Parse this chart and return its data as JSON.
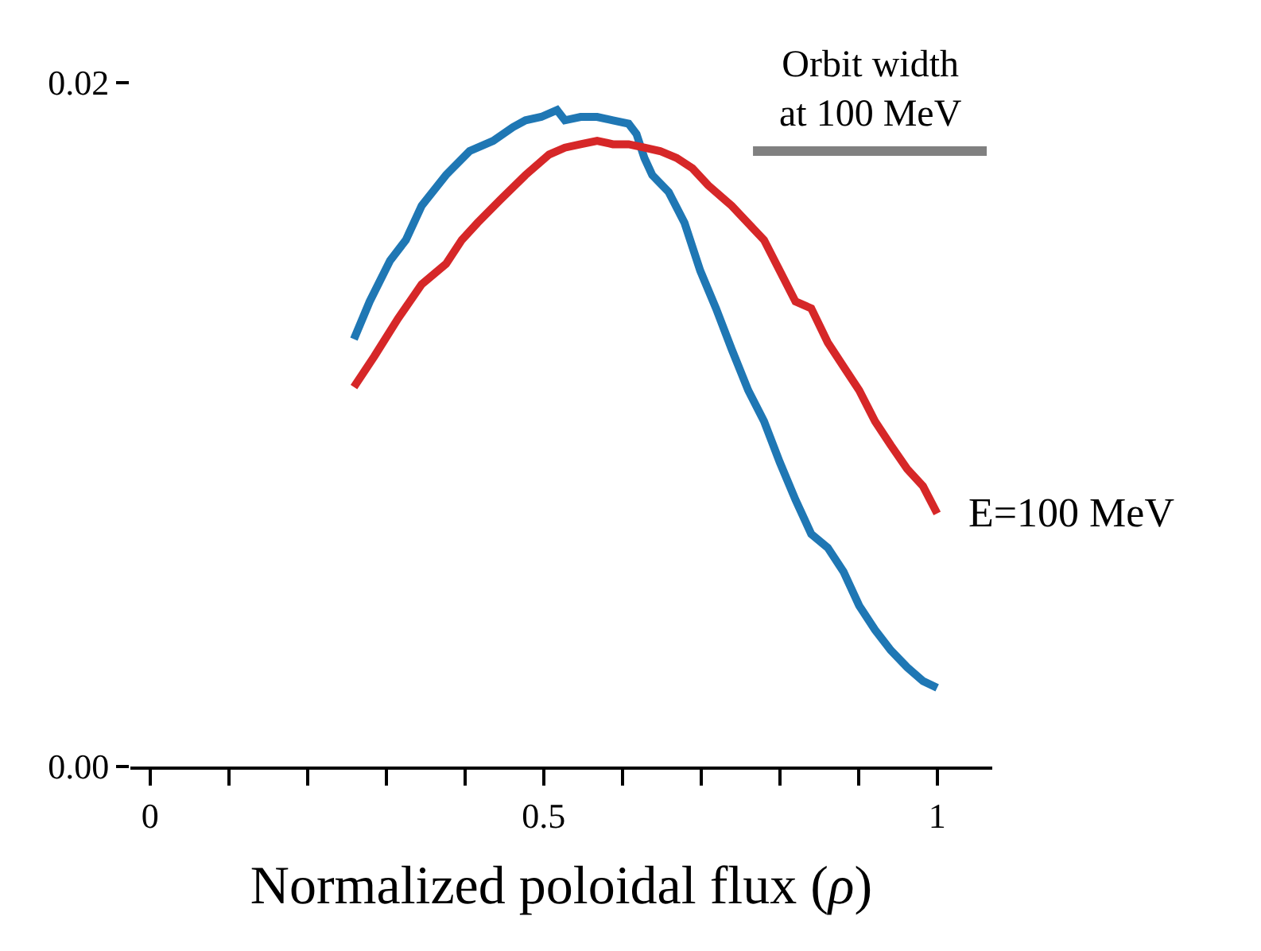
{
  "chart_data": {
    "type": "line",
    "xlabel": "Normalized poloidal flux (ρ)",
    "xlim": [
      -0.025,
      1.07
    ],
    "ylim": [
      0,
      0.02
    ],
    "xticks": [
      0,
      {
        "value": 0.1,
        "label": null
      },
      {
        "value": 0.2,
        "label": null
      },
      {
        "value": 0.3,
        "label": null
      },
      {
        "value": 0.4,
        "label": null
      },
      0.5,
      {
        "value": 0.6,
        "label": null
      },
      {
        "value": 0.7,
        "label": null
      },
      {
        "value": 0.8,
        "label": null
      },
      {
        "value": 0.9,
        "label": null
      },
      1
    ],
    "yticks": [
      {
        "value": 0,
        "label": "0.00"
      },
      0.02
    ],
    "grid": false,
    "legend": false,
    "marker": "none",
    "line_style": "solid",
    "series": [
      {
        "color": "#1f77b4",
        "x": [
          0.259,
          0.279,
          0.305,
          0.325,
          0.345,
          0.376,
          0.406,
          0.436,
          0.461,
          0.477,
          0.497,
          0.517,
          0.527,
          0.547,
          0.568,
          0.588,
          0.608,
          0.618,
          0.628,
          0.638,
          0.659,
          0.679,
          0.699,
          0.719,
          0.739,
          0.76,
          0.78,
          0.8,
          0.82,
          0.84,
          0.861,
          0.881,
          0.901,
          0.921,
          0.941,
          0.962,
          0.982,
          1.0
        ],
        "values": [
          0.0125,
          0.0136,
          0.0148,
          0.0154,
          0.0164,
          0.0173,
          0.018,
          0.0183,
          0.0187,
          0.0189,
          0.019,
          0.0192,
          0.0189,
          0.019,
          0.019,
          0.0189,
          0.0188,
          0.0185,
          0.0178,
          0.0173,
          0.0168,
          0.0159,
          0.0145,
          0.0134,
          0.0122,
          0.011,
          0.0101,
          0.0089,
          0.0078,
          0.0068,
          0.0064,
          0.0057,
          0.0047,
          0.004,
          0.0034,
          0.0029,
          0.0025,
          0.0023
        ]
      },
      {
        "name": "E=100 MeV",
        "color": "#d62728",
        "x": [
          0.259,
          0.285,
          0.315,
          0.345,
          0.376,
          0.396,
          0.416,
          0.446,
          0.477,
          0.507,
          0.527,
          0.547,
          0.568,
          0.588,
          0.608,
          0.628,
          0.648,
          0.669,
          0.689,
          0.709,
          0.739,
          0.78,
          0.8,
          0.82,
          0.84,
          0.861,
          0.881,
          0.901,
          0.921,
          0.941,
          0.962,
          0.982,
          1.0
        ],
        "values": [
          0.0111,
          0.012,
          0.0131,
          0.0141,
          0.0147,
          0.0154,
          0.0159,
          0.0166,
          0.0173,
          0.0179,
          0.0181,
          0.0182,
          0.0183,
          0.0182,
          0.0182,
          0.0181,
          0.018,
          0.0178,
          0.0175,
          0.017,
          0.0164,
          0.0154,
          0.0145,
          0.0136,
          0.0134,
          0.0124,
          0.0117,
          0.011,
          0.0101,
          0.0094,
          0.0087,
          0.0082,
          0.0074
        ]
      },
      {
        "name": "Orbit width\nat 100 MeV",
        "color": "#808080",
        "x": [
          0.766,
          1.063
        ],
        "values": [
          0.018,
          0.018
        ]
      }
    ]
  }
}
